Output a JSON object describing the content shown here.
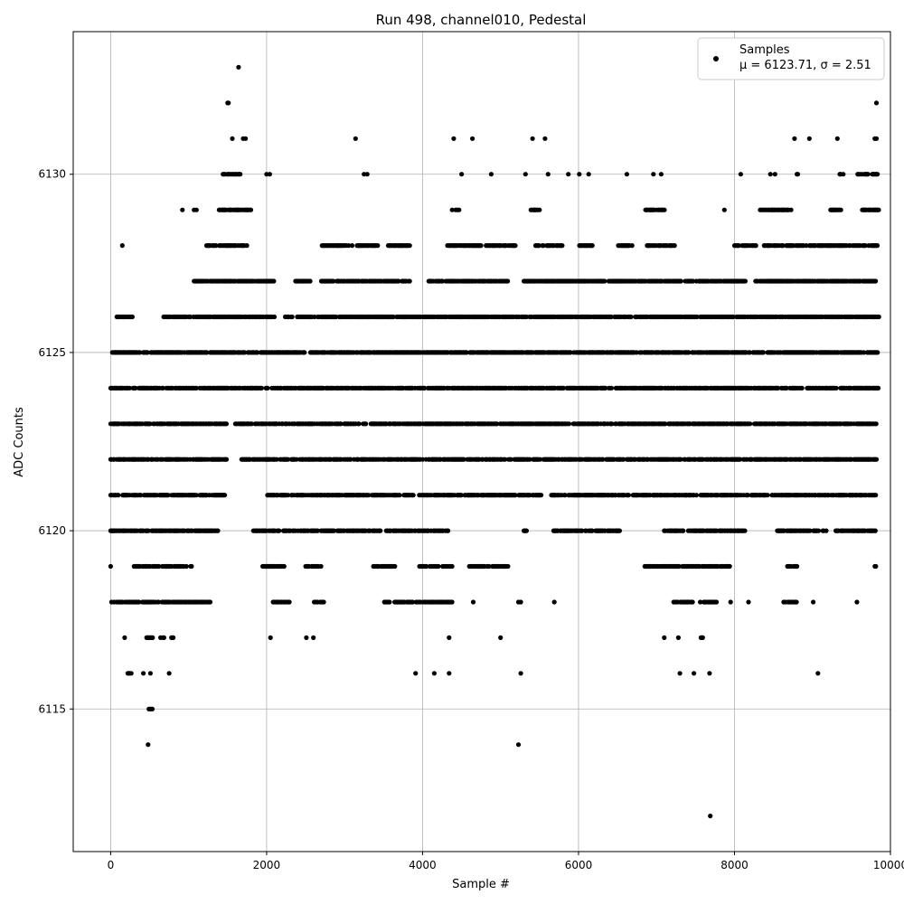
{
  "chart_data": {
    "type": "scatter",
    "title": "Run 498, channel010, Pedestal",
    "xlabel": "Sample #",
    "ylabel": "ADC Counts",
    "xlim": [
      -480,
      10000
    ],
    "ylim": [
      6111,
      6134
    ],
    "xticks": [
      0,
      2000,
      4000,
      6000,
      8000,
      10000
    ],
    "yticks": [
      6115,
      6120,
      6125,
      6130
    ],
    "grid": true,
    "marker_color": "#000000",
    "legend": {
      "placement": "top-right",
      "series_name": "Samples",
      "stats": "μ = 6123.71, σ = 2.51"
    },
    "series": [
      {
        "name": "Samples",
        "note": "values are integer ADC counts; x ranges represent runs of densely sampled points at that level",
        "levels": [
          {
            "y": 6125,
            "ranges": [
              [
                0,
                9840
              ]
            ]
          },
          {
            "y": 6124,
            "ranges": [
              [
                0,
                9850
              ]
            ]
          },
          {
            "y": 6123,
            "ranges": [
              [
                0,
                1510
              ],
              [
                1600,
                9820
              ]
            ]
          },
          {
            "y": 6122,
            "ranges": [
              [
                0,
                1500
              ],
              [
                1680,
                9830
              ]
            ]
          },
          {
            "y": 6121,
            "ranges": [
              [
                0,
                1470
              ],
              [
                2000,
                5530
              ],
              [
                5620,
                8440
              ],
              [
                8480,
                9820
              ]
            ]
          },
          {
            "y": 6126,
            "ranges": [
              [
                80,
                280
              ],
              [
                680,
                2100
              ],
              [
                2240,
                9860
              ]
            ]
          },
          {
            "y": 6120,
            "ranges": [
              [
                0,
                1380
              ],
              [
                1830,
                4330
              ],
              [
                5300,
                5340
              ],
              [
                5680,
                6530
              ],
              [
                7100,
                8140
              ],
              [
                8550,
                9180
              ],
              [
                9300,
                9820
              ]
            ]
          },
          {
            "y": 6127,
            "ranges": [
              [
                1070,
                2100
              ],
              [
                2360,
                2560
              ],
              [
                2680,
                3850
              ],
              [
                4080,
                5100
              ],
              [
                5300,
                8150
              ],
              [
                8270,
                9820
              ]
            ]
          },
          {
            "y": 6119,
            "ranges": [
              [
                300,
                1040
              ],
              [
                1950,
                2250
              ],
              [
                2500,
                2700
              ],
              [
                3370,
                3660
              ],
              [
                3950,
                4380
              ],
              [
                4600,
                5100
              ],
              [
                6850,
                7950
              ],
              [
                8680,
                8820
              ],
              [
                9790,
                9830
              ]
            ]
          },
          {
            "y": 6128,
            "ranges": [
              [
                1230,
                1750
              ],
              [
                2700,
                3100
              ],
              [
                3160,
                3430
              ],
              [
                3560,
                3840
              ],
              [
                4320,
                5200
              ],
              [
                5450,
                5800
              ],
              [
                5990,
                6180
              ],
              [
                6500,
                6700
              ],
              [
                6880,
                7240
              ],
              [
                8000,
                8280
              ],
              [
                8380,
                9840
              ]
            ]
          },
          {
            "y": 6118,
            "ranges": [
              [
                0,
                1280
              ],
              [
                2050,
                2300
              ],
              [
                2600,
                2740
              ],
              [
                3510,
                4380
              ],
              [
                7220,
                7480
              ],
              [
                7550,
                7780
              ],
              [
                8620,
                8800
              ]
            ]
          },
          {
            "y": 6129,
            "ranges": [
              [
                1380,
                1800
              ],
              [
                4380,
                4470
              ],
              [
                5390,
                5520
              ],
              [
                6860,
                7110
              ],
              [
                8330,
                8730
              ],
              [
                9200,
                9400
              ],
              [
                9640,
                9850
              ]
            ]
          },
          {
            "y": 6130,
            "ranges": [
              [
                1430,
                1680
              ],
              [
                8790,
                8830
              ],
              [
                9340,
                9400
              ],
              [
                9580,
                9850
              ]
            ]
          },
          {
            "y": 6117,
            "ranges": [
              [
                450,
                570
              ],
              [
                640,
                700
              ],
              [
                780,
                820
              ],
              [
                7570,
                7630
              ]
            ]
          },
          {
            "y": 6116,
            "ranges": [
              [
                220,
                270
              ]
            ]
          },
          {
            "y": 6115,
            "ranges": [
              [
                490,
                550
              ]
            ]
          }
        ],
        "points": [
          [
            0,
            6119
          ],
          [
            180,
            6117
          ],
          [
            150,
            6128
          ],
          [
            420,
            6116
          ],
          [
            510,
            6116
          ],
          [
            750,
            6116
          ],
          [
            480,
            6114
          ],
          [
            1500,
            6132
          ],
          [
            1510,
            6132
          ],
          [
            1640,
            6133
          ],
          [
            1560,
            6131
          ],
          [
            1700,
            6131
          ],
          [
            1730,
            6131
          ],
          [
            2000,
            6130
          ],
          [
            2040,
            6130
          ],
          [
            2050,
            6117
          ],
          [
            920,
            6129
          ],
          [
            1070,
            6129
          ],
          [
            1100,
            6129
          ],
          [
            2510,
            6117
          ],
          [
            2600,
            6117
          ],
          [
            3140,
            6131
          ],
          [
            3250,
            6130
          ],
          [
            3290,
            6130
          ],
          [
            3910,
            6116
          ],
          [
            4150,
            6116
          ],
          [
            4340,
            6116
          ],
          [
            4340,
            6117
          ],
          [
            4400,
            6131
          ],
          [
            4500,
            6130
          ],
          [
            4640,
            6131
          ],
          [
            4650,
            6118
          ],
          [
            4880,
            6130
          ],
          [
            5000,
            6117
          ],
          [
            5230,
            6114
          ],
          [
            5260,
            6116
          ],
          [
            5230,
            6118
          ],
          [
            5260,
            6118
          ],
          [
            5320,
            6130
          ],
          [
            5410,
            6131
          ],
          [
            5570,
            6131
          ],
          [
            5610,
            6130
          ],
          [
            5690,
            6118
          ],
          [
            5870,
            6130
          ],
          [
            6010,
            6130
          ],
          [
            6130,
            6130
          ],
          [
            6620,
            6130
          ],
          [
            6960,
            6130
          ],
          [
            7060,
            6130
          ],
          [
            7100,
            6117
          ],
          [
            7280,
            6117
          ],
          [
            7300,
            6116
          ],
          [
            7480,
            6116
          ],
          [
            7680,
            6116
          ],
          [
            7690,
            6112
          ],
          [
            7870,
            6129
          ],
          [
            7950,
            6118
          ],
          [
            8080,
            6130
          ],
          [
            8180,
            6118
          ],
          [
            8460,
            6130
          ],
          [
            8520,
            6130
          ],
          [
            8770,
            6131
          ],
          [
            8960,
            6131
          ],
          [
            9010,
            6118
          ],
          [
            9070,
            6116
          ],
          [
            9320,
            6131
          ],
          [
            9570,
            6118
          ],
          [
            9800,
            6131
          ],
          [
            9820,
            6131
          ],
          [
            9820,
            6132
          ]
        ]
      }
    ]
  }
}
